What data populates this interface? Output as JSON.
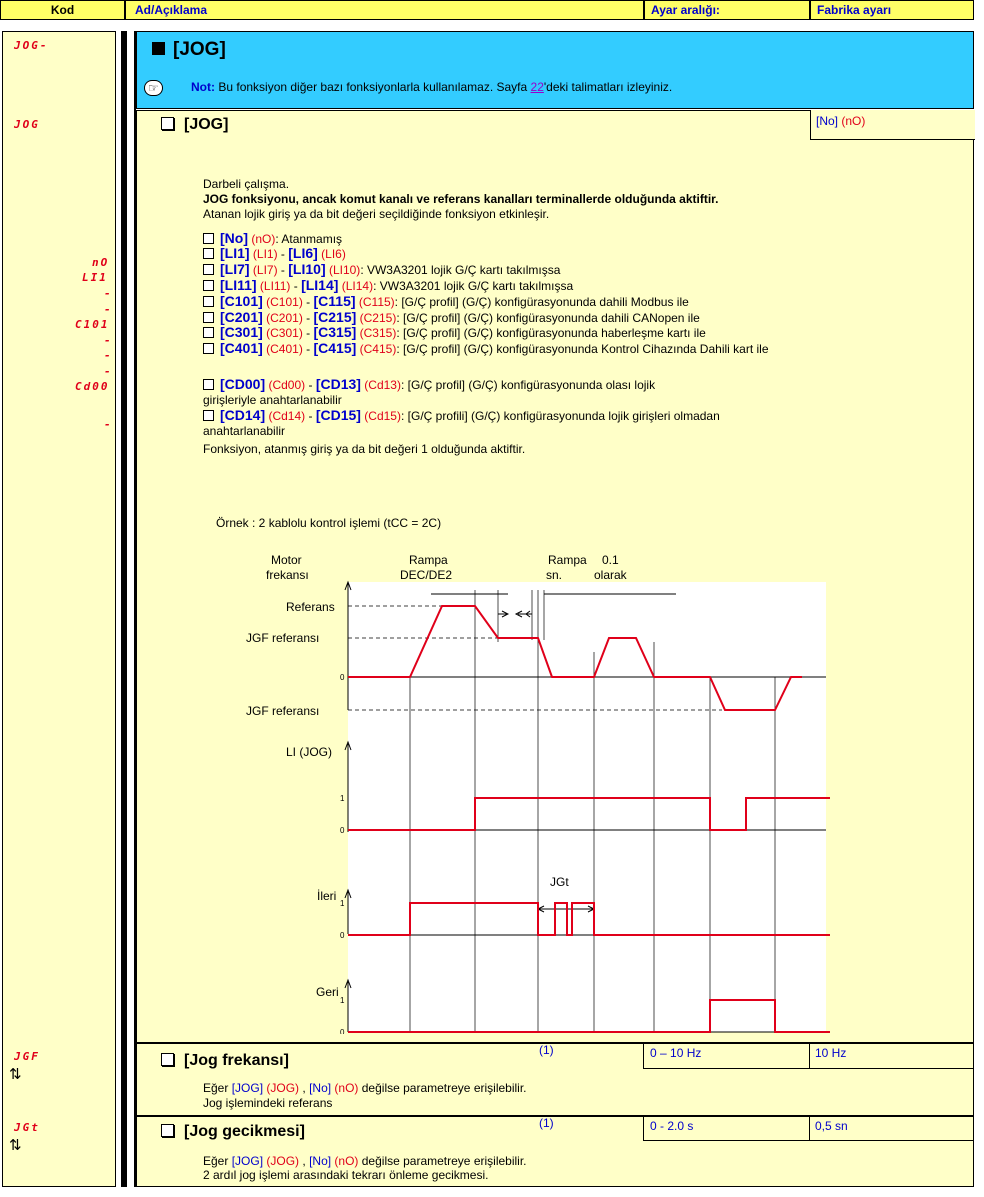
{
  "header": {
    "code": "Kod",
    "name": "Ad/Açıklama",
    "range": "Ayar aralığı:",
    "factory": "Fabrika ayarı"
  },
  "menu": {
    "code": "JOG-",
    "title": "[JOG]",
    "note_label": "Not:",
    "note_text": "Bu fonksiyon diğer bazı fonksiyonlarla kullanılamaz. Sayfa ",
    "note_page": "22",
    "note_suffix": "'deki talimatları izleyiniz."
  },
  "jog": {
    "code": "JOG",
    "title": "[JOG]",
    "default_bracket": "[No]",
    "default_code": "(nO)",
    "desc1": "Darbeli çalışma.",
    "desc2": "JOG fonksiyonu, ancak komut kanalı ve referans kanalları terminallerde olduğunda aktiftir.",
    "desc3": "Atanan lojik giriş ya da bit değeri seçildiğinde fonksiyon etkinleşir.",
    "side_codes": [
      "nO",
      "LI1",
      "-",
      "-",
      "C101",
      "-",
      "-",
      "-",
      "Cd00",
      "-"
    ],
    "options": [
      {
        "a": "[No]",
        "ac": "(nO)",
        "b": "",
        "bc": "",
        "text": ": Atanmamış"
      },
      {
        "a": "[LI1]",
        "ac": "(LI1)",
        "b": "[LI6]",
        "bc": "(LI6)",
        "text": ""
      },
      {
        "a": "[LI7]",
        "ac": "(LI7)",
        "b": "[LI10]",
        "bc": "(LI10)",
        "text": ": VW3A3201 lojik G/Ç kartı takılmışsa"
      },
      {
        "a": "[LI11]",
        "ac": "(LI11)",
        "b": "[LI14]",
        "bc": "(LI14)",
        "text": ": VW3A3201 lojik G/Ç kartı takılmışsa"
      },
      {
        "a": "[C101]",
        "ac": "(C101)",
        "b": "[C115]",
        "bc": "(C115)",
        "text": ": [G/Ç profil] (G/Ç) konfigürasyonunda dahili Modbus ile"
      },
      {
        "a": "[C201]",
        "ac": "(C201)",
        "b": "[C215]",
        "bc": "(C215)",
        "text": ": [G/Ç profil] (G/Ç) konfigürasyonunda dahili CANopen ile"
      },
      {
        "a": "[C301]",
        "ac": "(C301)",
        "b": "[C315]",
        "bc": "(C315)",
        "text": ": [G/Ç profil] (G/Ç) konfigürasyonunda haberleşme kartı ile"
      },
      {
        "a": "[C401]",
        "ac": "(C401)",
        "b": "[C415]",
        "bc": "(C415)",
        "text": ": [G/Ç profil] (G/Ç) konfigürasyonunda Kontrol Cihazında Dahili kart ile"
      },
      {
        "a": "[CD00]",
        "ac": "(Cd00)",
        "b": "[CD13]",
        "bc": "(Cd13)",
        "text": ": [G/Ç profil] (G/Ç) konfigürasyonunda olası lojik"
      },
      {
        "a": "[CD14]",
        "ac": "(Cd14)",
        "b": "[CD15]",
        "bc": "(Cd15)",
        "text": ": [G/Ç profili] (G/Ç) konfigürasyonunda lojik girişleri olmadan"
      }
    ],
    "wrap_cd00": "girişleriyle anahtarlanabilir",
    "wrap_cd14": "anahtarlanabilir",
    "active_note": "Fonksiyon, atanmış giriş ya da bit değeri 1 olduğunda aktiftir.",
    "example": "Örnek : 2 kablolu  kontrol işlemi (tCC = 2C)"
  },
  "diagram": {
    "motor1": "Motor",
    "motor2": "frekansı",
    "ramp1a": "Rampa",
    "ramp1b": "DEC/DE2",
    "ramp2a": "Rampa",
    "ramp2b": "sn.",
    "val_a": "0.1",
    "val_b": "olarak",
    "ref": "Referans",
    "jgf": "JGF referansı",
    "jgf_neg": "JGF referansı",
    "li": "LI (JOG)",
    "fwd": "İleri",
    "rev": "Geri",
    "jgt": "JGt",
    "zero": "0",
    "one": "1"
  },
  "jgf": {
    "code": "JGF",
    "title": "[Jog frekansı]",
    "note": "(1)",
    "range": "0 – 10 Hz",
    "factory": "10 Hz",
    "desc_pre": "Eğer ",
    "desc_b1": "[JOG]",
    "desc_c1": "(JOG)",
    "desc_b2": "[No]",
    "desc_c2": "(nO)",
    "desc_post": " değilse parametreye erişilebilir.",
    "desc2": "Jog işlemindeki referans"
  },
  "jgt": {
    "code": "JGt",
    "title": "[Jog gecikmesi]",
    "note": "(1)",
    "range": "0 - 2.0 s",
    "factory": "0,5 sn",
    "desc_pre": "Eğer ",
    "desc_b1": "[JOG]",
    "desc_c1": "(JOG)",
    "desc_b2": "[No]",
    "desc_c2": "(nO)",
    "desc_post": " değilse parametreye erişilebilir.",
    "desc2": "2 ardıl jog işlemi arasındaki tekrarı önleme gecikmesi."
  },
  "icons": {
    "hand": "pointing-hand-icon",
    "arrows": "up-down-arrows-icon"
  }
}
